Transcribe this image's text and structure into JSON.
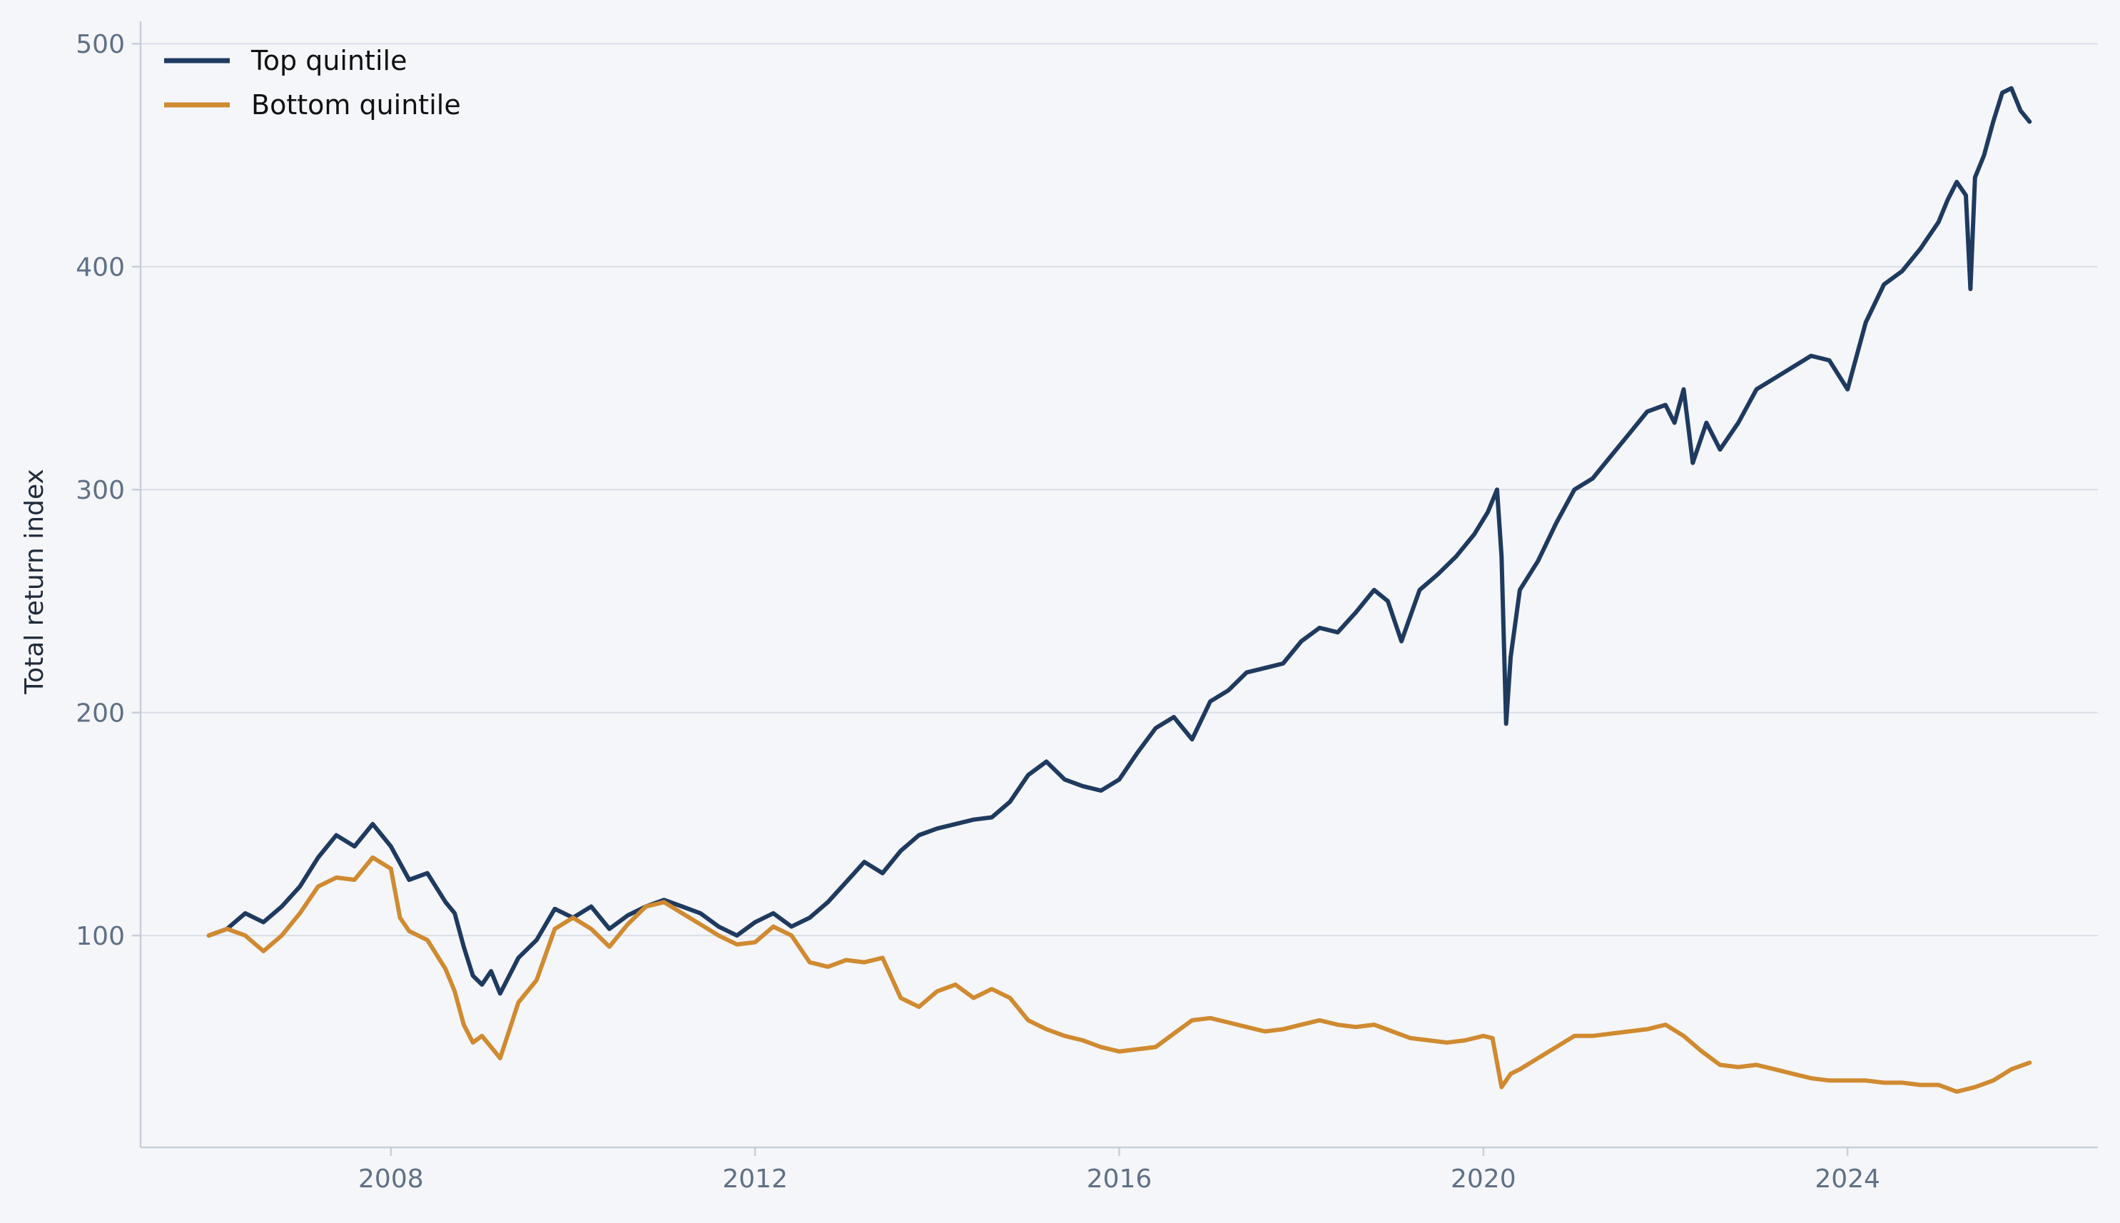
{
  "chart_data": {
    "type": "line",
    "title": "",
    "xlabel": "",
    "ylabel": "Total return index",
    "xlim": [
      2005.25,
      2026.75
    ],
    "ylim": [
      5,
      510
    ],
    "x_ticks": [
      2008,
      2012,
      2016,
      2020,
      2024
    ],
    "x_tick_labels": [
      "2008",
      "2012",
      "2016",
      "2020",
      "2024"
    ],
    "y_ticks": [
      100,
      200,
      300,
      400,
      500
    ],
    "y_tick_labels": [
      "100",
      "200",
      "300",
      "400",
      "500"
    ],
    "grid": "horizontal",
    "legend": "top-left",
    "colors": {
      "background": "#f4f6fa",
      "grid": "#d9dee7",
      "tick_text": "#5f7086"
    },
    "series": [
      {
        "name": "Top quintile",
        "color": "#1f3a5f",
        "x": [
          2006.0,
          2006.2,
          2006.4,
          2006.6,
          2006.8,
          2007.0,
          2007.2,
          2007.4,
          2007.6,
          2007.8,
          2008.0,
          2008.2,
          2008.4,
          2008.6,
          2008.7,
          2008.8,
          2008.9,
          2009.0,
          2009.1,
          2009.2,
          2009.4,
          2009.6,
          2009.8,
          2010.0,
          2010.2,
          2010.4,
          2010.6,
          2010.8,
          2011.0,
          2011.2,
          2011.4,
          2011.6,
          2011.8,
          2012.0,
          2012.2,
          2012.4,
          2012.6,
          2012.8,
          2013.0,
          2013.2,
          2013.4,
          2013.6,
          2013.8,
          2014.0,
          2014.2,
          2014.4,
          2014.6,
          2014.8,
          2015.0,
          2015.2,
          2015.4,
          2015.6,
          2015.8,
          2016.0,
          2016.2,
          2016.4,
          2016.6,
          2016.8,
          2017.0,
          2017.2,
          2017.4,
          2017.6,
          2017.8,
          2018.0,
          2018.2,
          2018.4,
          2018.6,
          2018.8,
          2018.95,
          2019.1,
          2019.3,
          2019.5,
          2019.7,
          2019.9,
          2020.05,
          2020.15,
          2020.2,
          2020.25,
          2020.3,
          2020.4,
          2020.6,
          2020.8,
          2021.0,
          2021.2,
          2021.4,
          2021.6,
          2021.8,
          2022.0,
          2022.1,
          2022.2,
          2022.3,
          2022.45,
          2022.6,
          2022.8,
          2023.0,
          2023.2,
          2023.4,
          2023.6,
          2023.8,
          2024.0,
          2024.2,
          2024.4,
          2024.6,
          2024.8,
          2025.0,
          2025.1,
          2025.2,
          2025.3,
          2025.35,
          2025.4,
          2025.5,
          2025.6,
          2025.7,
          2025.8,
          2025.9,
          2026.0
        ],
        "y": [
          100,
          103,
          110,
          106,
          113,
          122,
          135,
          145,
          140,
          150,
          140,
          125,
          128,
          115,
          110,
          95,
          82,
          78,
          84,
          74,
          90,
          98,
          112,
          108,
          113,
          103,
          109,
          113,
          116,
          113,
          110,
          104,
          100,
          106,
          110,
          104,
          108,
          115,
          124,
          133,
          128,
          138,
          145,
          148,
          150,
          152,
          153,
          160,
          172,
          178,
          170,
          167,
          165,
          170,
          182,
          193,
          198,
          188,
          205,
          210,
          218,
          220,
          222,
          232,
          238,
          236,
          245,
          255,
          250,
          232,
          255,
          262,
          270,
          280,
          290,
          300,
          270,
          195,
          225,
          255,
          268,
          285,
          300,
          305,
          315,
          325,
          335,
          338,
          330,
          345,
          312,
          330,
          318,
          330,
          345,
          350,
          355,
          360,
          358,
          345,
          375,
          392,
          398,
          408,
          420,
          430,
          438,
          432,
          390,
          440,
          450,
          465,
          478,
          480,
          470,
          465
        ]
      },
      {
        "name": "Bottom quintile",
        "color": "#d08a30",
        "x": [
          2006.0,
          2006.2,
          2006.4,
          2006.6,
          2006.8,
          2007.0,
          2007.2,
          2007.4,
          2007.6,
          2007.8,
          2008.0,
          2008.1,
          2008.2,
          2008.4,
          2008.6,
          2008.7,
          2008.8,
          2008.9,
          2009.0,
          2009.1,
          2009.2,
          2009.4,
          2009.6,
          2009.8,
          2010.0,
          2010.2,
          2010.4,
          2010.6,
          2010.8,
          2011.0,
          2011.2,
          2011.4,
          2011.6,
          2011.8,
          2012.0,
          2012.2,
          2012.4,
          2012.6,
          2012.8,
          2013.0,
          2013.2,
          2013.4,
          2013.6,
          2013.8,
          2014.0,
          2014.2,
          2014.4,
          2014.6,
          2014.8,
          2015.0,
          2015.2,
          2015.4,
          2015.6,
          2015.8,
          2016.0,
          2016.2,
          2016.4,
          2016.6,
          2016.8,
          2017.0,
          2017.2,
          2017.4,
          2017.6,
          2017.8,
          2018.0,
          2018.2,
          2018.4,
          2018.6,
          2018.8,
          2019.0,
          2019.2,
          2019.4,
          2019.6,
          2019.8,
          2020.0,
          2020.1,
          2020.2,
          2020.3,
          2020.4,
          2020.6,
          2020.8,
          2021.0,
          2021.2,
          2021.4,
          2021.6,
          2021.8,
          2022.0,
          2022.2,
          2022.4,
          2022.6,
          2022.8,
          2023.0,
          2023.2,
          2023.4,
          2023.6,
          2023.8,
          2024.0,
          2024.2,
          2024.4,
          2024.6,
          2024.8,
          2025.0,
          2025.2,
          2025.4,
          2025.6,
          2025.8,
          2026.0
        ],
        "y": [
          100,
          103,
          100,
          93,
          100,
          110,
          122,
          126,
          125,
          135,
          130,
          108,
          102,
          98,
          85,
          75,
          60,
          52,
          55,
          50,
          45,
          70,
          80,
          103,
          108,
          103,
          95,
          105,
          113,
          115,
          110,
          105,
          100,
          96,
          97,
          104,
          100,
          88,
          86,
          89,
          88,
          90,
          72,
          68,
          75,
          78,
          72,
          76,
          72,
          62,
          58,
          55,
          53,
          50,
          48,
          49,
          50,
          56,
          62,
          63,
          61,
          59,
          57,
          58,
          60,
          62,
          60,
          59,
          60,
          57,
          54,
          53,
          52,
          53,
          55,
          54,
          32,
          38,
          40,
          45,
          50,
          55,
          55,
          56,
          57,
          58,
          60,
          55,
          48,
          42,
          41,
          42,
          40,
          38,
          36,
          35,
          35,
          35,
          34,
          34,
          33,
          33,
          30,
          32,
          35,
          40,
          43
        ]
      }
    ]
  }
}
